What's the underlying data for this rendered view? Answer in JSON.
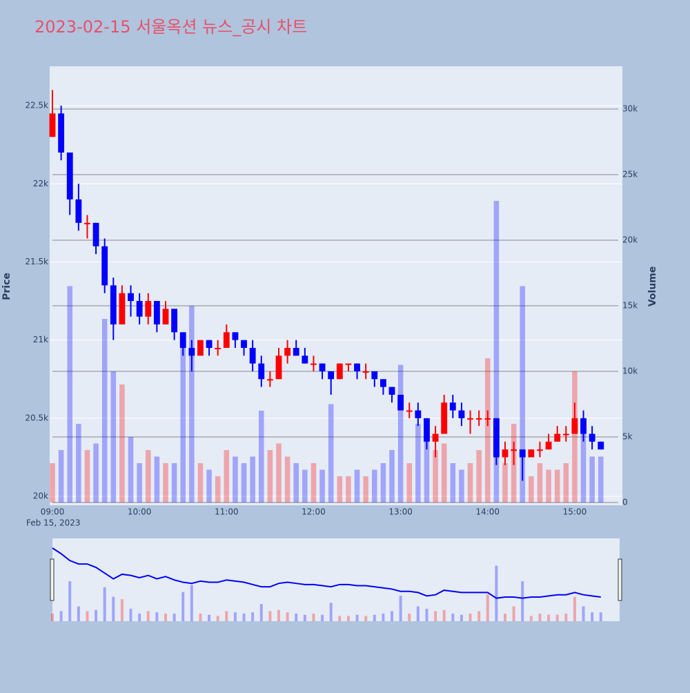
{
  "chart_data": {
    "type": "candlestick",
    "title": "2023-02-15 서울옥션 뉴스_공시 차트",
    "y_label": "Price",
    "y2_label": "Volume",
    "x_date": "Feb 15, 2023",
    "increasing_color": "#ff0000",
    "decreasing_color": "#0000ff",
    "xlim": [
      "09:00",
      "15:30"
    ],
    "xticks": [
      "09:00",
      "10:00",
      "11:00",
      "12:00",
      "13:00",
      "14:00",
      "15:00"
    ],
    "ylim": [
      19943,
      22752
    ],
    "yticks": [
      {
        "value": 20000,
        "label": "20k"
      },
      {
        "value": 20500,
        "label": "20.5k"
      },
      {
        "value": 21000,
        "label": "21k"
      },
      {
        "value": 21500,
        "label": "21.5k"
      },
      {
        "value": 22000,
        "label": "22k"
      },
      {
        "value": 22500,
        "label": "22.5k"
      }
    ],
    "y2lim": [
      -210,
      33263
    ],
    "y2ticks": [
      0,
      {
        "value": 5000,
        "label": "5k"
      },
      {
        "value": 10000,
        "label": "10k"
      },
      {
        "value": 15000,
        "label": "15k"
      },
      {
        "value": 20000,
        "label": "20k"
      },
      {
        "value": 25000,
        "label": "25k"
      },
      {
        "value": 30000,
        "label": "30k"
      }
    ],
    "x": [
      "09:00",
      "09:06",
      "09:12",
      "09:18",
      "09:24",
      "09:30",
      "09:36",
      "09:42",
      "09:48",
      "09:54",
      "10:00",
      "10:06",
      "10:12",
      "10:18",
      "10:24",
      "10:30",
      "10:36",
      "10:42",
      "10:48",
      "10:54",
      "11:00",
      "11:06",
      "11:12",
      "11:18",
      "11:24",
      "11:30",
      "11:36",
      "11:42",
      "11:48",
      "11:54",
      "12:00",
      "12:06",
      "12:12",
      "12:18",
      "12:24",
      "12:30",
      "12:36",
      "12:42",
      "12:48",
      "12:54",
      "13:00",
      "13:06",
      "13:12",
      "13:18",
      "13:24",
      "13:30",
      "13:36",
      "13:42",
      "13:48",
      "13:54",
      "14:00",
      "14:06",
      "14:12",
      "14:18",
      "14:24",
      "14:30",
      "14:36",
      "14:42",
      "14:48",
      "14:54",
      "15:00",
      "15:06",
      "15:12",
      "15:18"
    ],
    "open": [
      22300,
      22450,
      22200,
      21900,
      21750,
      21750,
      21600,
      21350,
      21100,
      21300,
      21250,
      21150,
      21250,
      21100,
      21200,
      21050,
      20950,
      20900,
      21000,
      20950,
      20950,
      21050,
      21000,
      20950,
      20850,
      20750,
      20750,
      20900,
      20950,
      20900,
      20850,
      20850,
      20800,
      20750,
      20850,
      20850,
      20800,
      20800,
      20750,
      20700,
      20650,
      20550,
      20550,
      20500,
      20350,
      20400,
      20600,
      20550,
      20500,
      20500,
      20500,
      20500,
      20250,
      20300,
      20300,
      20250,
      20300,
      20300,
      20350,
      20400,
      20400,
      20500,
      20400,
      20350
    ],
    "high": [
      22600,
      22500,
      22200,
      22000,
      21800,
      21750,
      21650,
      21400,
      21350,
      21350,
      21300,
      21300,
      21250,
      21250,
      21200,
      21050,
      21000,
      21000,
      21000,
      21000,
      21100,
      21050,
      21000,
      21000,
      20900,
      20800,
      20950,
      21000,
      21000,
      20950,
      20900,
      20850,
      20800,
      20850,
      20850,
      20850,
      20850,
      20800,
      20750,
      20700,
      20650,
      20600,
      20600,
      20500,
      20450,
      20650,
      20650,
      20600,
      20550,
      20550,
      20550,
      20500,
      20350,
      20350,
      20300,
      20300,
      20350,
      20400,
      20450,
      20450,
      20600,
      20550,
      20450,
      20350
    ],
    "low": [
      22300,
      22150,
      21800,
      21700,
      21650,
      21550,
      21300,
      21000,
      21100,
      21150,
      21100,
      21100,
      21050,
      21100,
      21000,
      20900,
      20800,
      20900,
      20900,
      20900,
      20950,
      20950,
      20900,
      20800,
      20700,
      20700,
      20750,
      20850,
      20900,
      20850,
      20800,
      20750,
      20650,
      20750,
      20800,
      20750,
      20750,
      20700,
      20650,
      20600,
      20550,
      20500,
      20450,
      20300,
      20250,
      20400,
      20500,
      20450,
      20400,
      20450,
      20450,
      20200,
      20200,
      20200,
      20100,
      20250,
      20250,
      20300,
      20350,
      20350,
      20400,
      20350,
      20300,
      20300
    ],
    "close": [
      22450,
      22200,
      21900,
      21750,
      21750,
      21600,
      21350,
      21100,
      21300,
      21250,
      21150,
      21250,
      21100,
      21200,
      21050,
      20950,
      20900,
      21000,
      20950,
      20950,
      21050,
      21000,
      20950,
      20850,
      20750,
      20750,
      20900,
      20950,
      20900,
      20850,
      20850,
      20800,
      20750,
      20850,
      20850,
      20800,
      20800,
      20750,
      20700,
      20650,
      20550,
      20550,
      20500,
      20350,
      20400,
      20600,
      20550,
      20500,
      20500,
      20500,
      20500,
      20250,
      20300,
      20300,
      20250,
      20300,
      20300,
      20350,
      20400,
      20400,
      20500,
      20400,
      20350,
      20300
    ],
    "volume": [
      3000,
      4000,
      16500,
      6000,
      4000,
      4500,
      14000,
      10000,
      9000,
      5000,
      3000,
      4000,
      3500,
      3000,
      3000,
      12000,
      15000,
      3000,
      2500,
      2000,
      4000,
      3500,
      3000,
      3500,
      7000,
      4000,
      4500,
      3500,
      3000,
      2500,
      3000,
      2500,
      7500,
      2000,
      2000,
      2500,
      2000,
      2500,
      3000,
      4000,
      10500,
      3000,
      6000,
      5000,
      4000,
      4500,
      3000,
      2500,
      3000,
      4000,
      11000,
      23000,
      3000,
      6000,
      16500,
      2000,
      3000,
      2500,
      2500,
      3000,
      10000,
      6000,
      3500,
      3500
    ]
  }
}
